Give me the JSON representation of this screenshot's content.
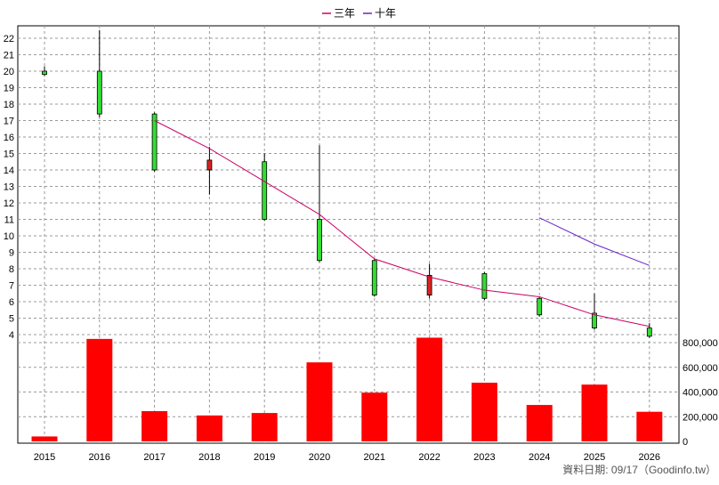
{
  "legend": [
    {
      "label": "三年",
      "color": "#cc0066"
    },
    {
      "label": "十年",
      "color": "#6622cc"
    }
  ],
  "footer_text": "資料日期: 09/17（Goodinfo.tw）",
  "chart_data": {
    "type": "candlestick-with-volume",
    "x": [
      "2015",
      "2016",
      "2017",
      "2018",
      "2019",
      "2020",
      "2021",
      "2022",
      "2023",
      "2024",
      "2025",
      "2026"
    ],
    "price_axis": {
      "min": 4,
      "max": 22,
      "ticks": [
        4,
        5,
        6,
        7,
        8,
        9,
        10,
        11,
        12,
        13,
        14,
        15,
        16,
        17,
        18,
        19,
        20,
        21,
        22
      ],
      "position": "left"
    },
    "volume_axis": {
      "min": 0,
      "max": 800000,
      "ticks": [
        0,
        200000,
        400000,
        600000,
        800000
      ],
      "tick_labels": [
        "0",
        "200,000",
        "400,000",
        "600,000",
        "800,000"
      ],
      "position": "right"
    },
    "candles": [
      {
        "x": "2015",
        "open": 19.8,
        "close": 20.0,
        "high": 20.3,
        "low": 19.7
      },
      {
        "x": "2016",
        "open": 17.4,
        "close": 20.0,
        "high": 22.5,
        "low": 17.2
      },
      {
        "x": "2017",
        "open": 14.0,
        "close": 17.4,
        "high": 17.5,
        "low": 13.9
      },
      {
        "x": "2018",
        "open": 14.6,
        "close": 14.0,
        "high": 15.4,
        "low": 12.5
      },
      {
        "x": "2019",
        "open": 11.0,
        "close": 14.5,
        "high": 15.0,
        "low": 10.9
      },
      {
        "x": "2020",
        "open": 8.5,
        "close": 11.0,
        "high": 15.5,
        "low": 8.4
      },
      {
        "x": "2021",
        "open": 6.4,
        "close": 8.5,
        "high": 8.6,
        "low": 6.3
      },
      {
        "x": "2022",
        "open": 7.6,
        "close": 6.4,
        "high": 8.3,
        "low": 6.2
      },
      {
        "x": "2023",
        "open": 6.2,
        "close": 7.7,
        "high": 7.8,
        "low": 6.1
      },
      {
        "x": "2024",
        "open": 5.2,
        "close": 6.2,
        "high": 6.3,
        "low": 5.1
      },
      {
        "x": "2025",
        "open": 4.4,
        "close": 5.3,
        "high": 6.5,
        "low": 4.3
      },
      {
        "x": "2026",
        "open": 3.9,
        "close": 4.4,
        "high": 4.7,
        "low": 3.8
      }
    ],
    "series": [
      {
        "name": "三年",
        "color": "#cc0066",
        "values": [
          null,
          null,
          17.0,
          15.3,
          13.3,
          11.3,
          8.6,
          7.5,
          6.7,
          6.3,
          5.2,
          4.5
        ]
      },
      {
        "name": "十年",
        "color": "#6622cc",
        "values": [
          null,
          null,
          null,
          null,
          null,
          null,
          null,
          null,
          null,
          11.1,
          9.5,
          8.2
        ]
      }
    ],
    "volume": [
      40000,
      830000,
      245000,
      210000,
      230000,
      640000,
      395000,
      840000,
      475000,
      295000,
      460000,
      240000
    ],
    "volume_color": "#ff0000",
    "up_color": "#33dd33",
    "down_color": "#dd2222",
    "grid": true
  }
}
